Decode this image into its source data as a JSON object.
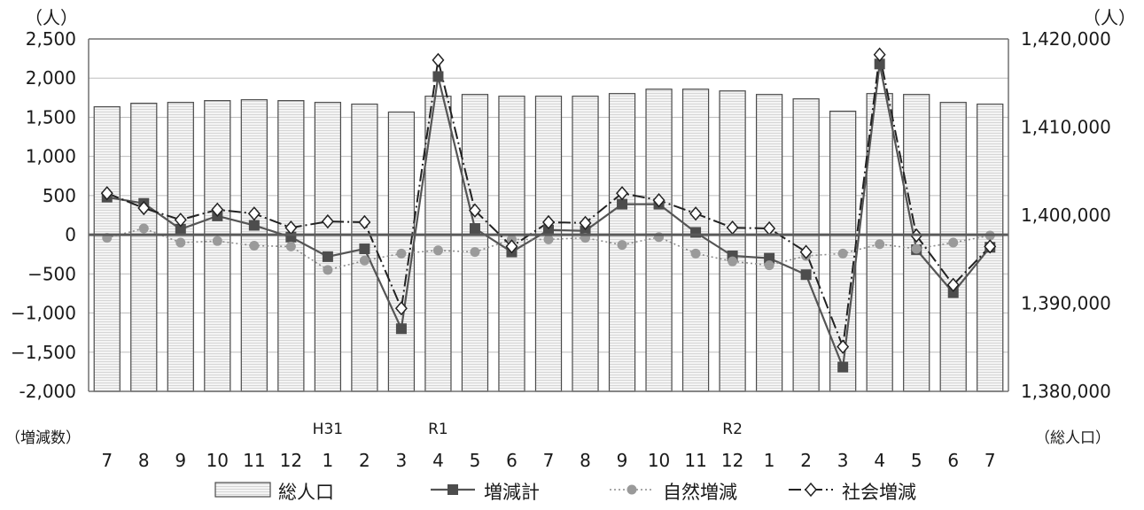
{
  "chart_data": {
    "type": "bar",
    "categories": [
      "7",
      "8",
      "9",
      "10",
      "11",
      "12",
      "1",
      "2",
      "3",
      "4",
      "5",
      "6",
      "7",
      "8",
      "9",
      "10",
      "11",
      "12",
      "1",
      "2",
      "3",
      "4",
      "5",
      "6",
      "7"
    ],
    "year_labels": [
      {
        "index": 6,
        "label": "H31"
      },
      {
        "index": 9,
        "label": "R1"
      },
      {
        "index": 17,
        "label": "R2"
      }
    ],
    "left_axis": {
      "unit_label": "（人）",
      "side_label": "（増減数）",
      "ylim": [
        -2000,
        2500
      ],
      "ticks": [
        2500,
        2000,
        1500,
        1000,
        500,
        0,
        -500,
        -1000,
        -1500,
        -2000
      ],
      "tick_labels": [
        "2,500",
        "2,000",
        "1,500",
        "1,000",
        "500",
        "0",
        "−500",
        "−1,000",
        "−1,500",
        "-2,000"
      ]
    },
    "right_axis": {
      "unit_label": "（人）",
      "side_label": "（総人口）",
      "ylim": [
        1380000,
        1420000
      ],
      "ticks": [
        1420000,
        1410000,
        1400000,
        1390000,
        1380000
      ],
      "tick_labels": [
        "1,420,000",
        "1,410,000",
        "1,400,000",
        "1,390,000",
        "1,380,000"
      ]
    },
    "series": [
      {
        "name": "総人口",
        "kind": "bar",
        "axis": "right",
        "values": [
          1412300,
          1412700,
          1412800,
          1413000,
          1413100,
          1413000,
          1412800,
          1412600,
          1411700,
          1413500,
          1413700,
          1413500,
          1413500,
          1413500,
          1413800,
          1414300,
          1414300,
          1414100,
          1413700,
          1413200,
          1411800,
          1413800,
          1413700,
          1412800,
          1412600
        ]
      },
      {
        "name": "増減計",
        "kind": "line",
        "axis": "left",
        "marker": "square",
        "values": [
          480,
          400,
          70,
          240,
          120,
          -30,
          -280,
          -180,
          -1200,
          2020,
          80,
          -220,
          60,
          50,
          390,
          390,
          30,
          -270,
          -300,
          -510,
          -1690,
          2180,
          -190,
          -740,
          -160
        ]
      },
      {
        "name": "自然増減",
        "kind": "line",
        "axis": "left",
        "marker": "circle",
        "values": [
          -40,
          80,
          -100,
          -80,
          -140,
          -150,
          -450,
          -330,
          -240,
          -200,
          -220,
          -60,
          -60,
          -40,
          -130,
          -30,
          -240,
          -340,
          -390,
          -270,
          -240,
          -120,
          -180,
          -100,
          -10
        ]
      },
      {
        "name": "社会増減",
        "kind": "line",
        "axis": "left",
        "marker": "diamond",
        "values": [
          530,
          340,
          190,
          320,
          270,
          90,
          170,
          160,
          -940,
          2230,
          310,
          -150,
          160,
          150,
          530,
          440,
          270,
          90,
          80,
          -220,
          -1430,
          2300,
          -10,
          -640,
          -150
        ]
      }
    ],
    "grid": true,
    "legend_position": "bottom"
  },
  "colors": {
    "bar_fill": "#f4f4f4",
    "bar_stripe": "#c9c9c9",
    "bar_stroke": "#4a4a4a",
    "total_line": "#555555",
    "natural_line": "#8c8c8c",
    "natural_marker": "#9a9a9a",
    "social_line": "#222222",
    "zero_line": "#5a5a5a",
    "grid": "#bdbdbd",
    "axis": "#707070"
  }
}
